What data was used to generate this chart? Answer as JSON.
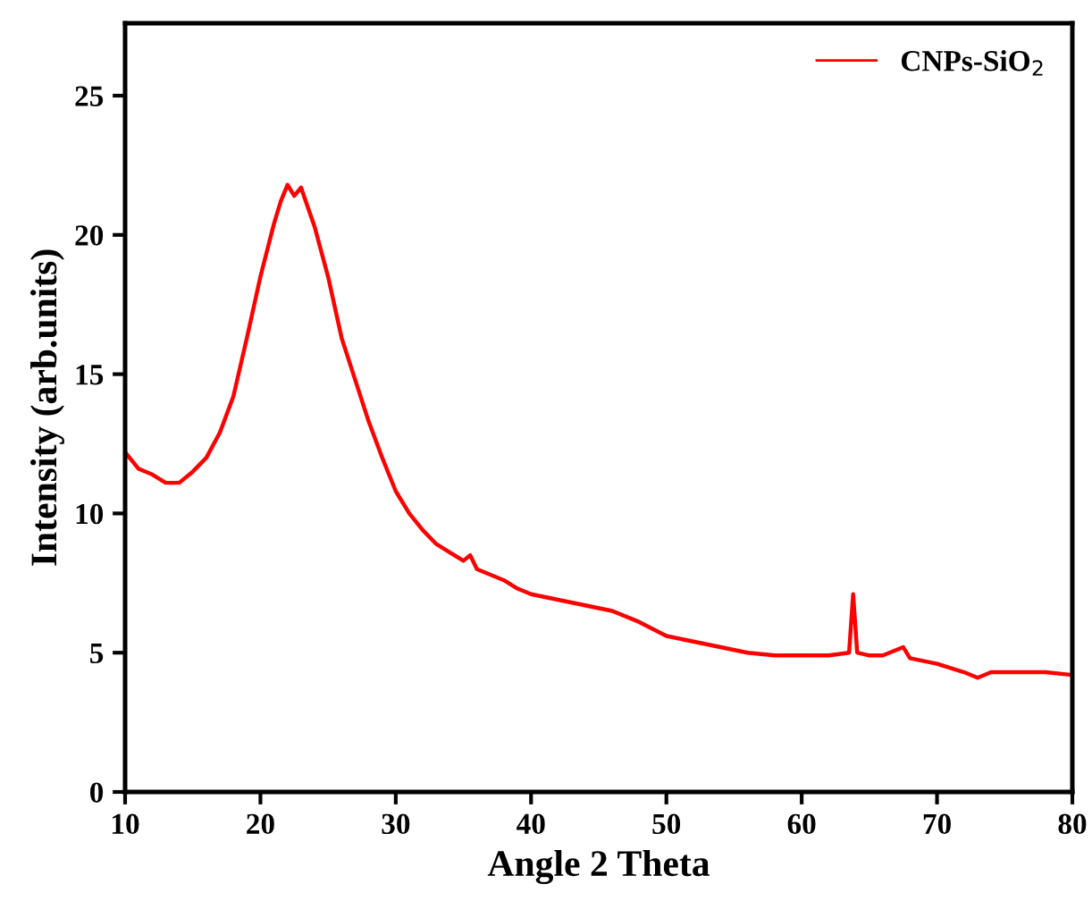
{
  "chart_data": {
    "type": "line",
    "xlabel": "Angle 2 Theta",
    "ylabel": "Intensity (arb.units)",
    "xlim": [
      10,
      80
    ],
    "xticks": [
      10,
      20,
      30,
      40,
      50,
      60,
      70,
      80
    ],
    "ylim": [
      0,
      27.6
    ],
    "yticks": [
      0,
      5,
      10,
      15,
      20,
      25
    ],
    "grid": false,
    "legend": "top right",
    "series": [
      {
        "name": "CNPs-SiO$_{2}$",
        "color": "#ff0000",
        "x": [
          10,
          11,
          12,
          13,
          14,
          15,
          16,
          17,
          18,
          19,
          20,
          21,
          21.5,
          22,
          22.5,
          23,
          23.5,
          24,
          25,
          26,
          27,
          28,
          29,
          30,
          31,
          32,
          33,
          34,
          35,
          35.5,
          36,
          37,
          38,
          39,
          40,
          42,
          44,
          46,
          48,
          50,
          52,
          54,
          56,
          58,
          60,
          62,
          63.5,
          63.8,
          64.1,
          65,
          66,
          67.5,
          68,
          70,
          72,
          73,
          74,
          76,
          78,
          80
        ],
        "values": [
          12.2,
          11.6,
          11.4,
          11.1,
          11.1,
          11.5,
          12.0,
          12.9,
          14.2,
          16.3,
          18.5,
          20.4,
          21.2,
          21.8,
          21.4,
          21.7,
          21.0,
          20.3,
          18.5,
          16.3,
          14.8,
          13.3,
          12.0,
          10.8,
          10.0,
          9.4,
          8.9,
          8.6,
          8.3,
          8.5,
          8.0,
          7.8,
          7.6,
          7.3,
          7.1,
          6.9,
          6.7,
          6.5,
          6.1,
          5.6,
          5.4,
          5.2,
          5.0,
          4.9,
          4.9,
          4.9,
          5.0,
          7.1,
          5.0,
          4.9,
          4.9,
          5.2,
          4.8,
          4.6,
          4.3,
          4.1,
          4.3,
          4.3,
          4.3,
          4.2
        ]
      }
    ]
  }
}
